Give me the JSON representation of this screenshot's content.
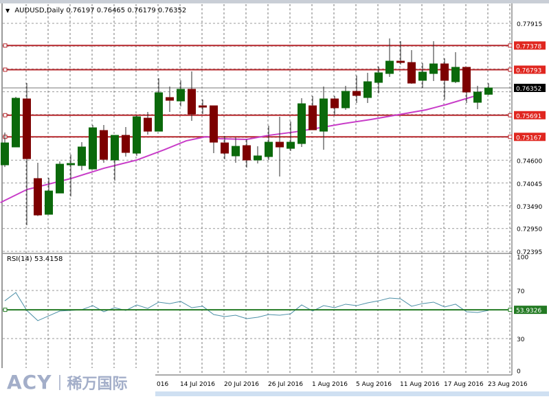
{
  "header": {
    "symbol": "AUDUSD,Daily",
    "open": "0.76197",
    "high": "0.76465",
    "low": "0.76179",
    "close": "0.76352"
  },
  "rsi_header": "RSI(14) 53.4158",
  "colors": {
    "bull": "#0b690b",
    "bear": "#7d0000",
    "level_line": "#b5262b",
    "level_label": "#e0261f",
    "ma": "#c83cc8",
    "rsi_line": "#4b8fa6",
    "rsi_level": "#237a23"
  },
  "chart_data": [
    {
      "type": "candlestick",
      "title": "AUDUSD,Daily",
      "ylim": [
        0.72395,
        0.77915
      ],
      "price_axis_labels": [
        "0.77915",
        "0.74600",
        "0.74045",
        "0.73490",
        "0.72950",
        "0.72395"
      ],
      "date_labels": [
        "016",
        "14 Jul 2016",
        "20 Jul 2016",
        "26 Jul 2016",
        "1 Aug 2016",
        "5 Aug 2016",
        "11 Aug 2016",
        "17 Aug 2016",
        "23 Aug 2016"
      ],
      "grid": true,
      "current_price": "0.76352",
      "horizontal_levels": [
        "0.77378",
        "0.76793",
        "0.75691",
        "0.75167"
      ],
      "ohlc": [
        [
          0.74489,
          0.75271,
          0.74439,
          0.75021
        ],
        [
          0.74922,
          0.76136,
          0.74922,
          0.76102
        ],
        [
          0.76086,
          0.76468,
          0.73026,
          0.74639
        ],
        [
          0.74157,
          0.74539,
          0.7325,
          0.73275
        ],
        [
          0.73292,
          0.74173,
          0.73292,
          0.73857
        ],
        [
          0.73807,
          0.74572,
          0.73807,
          0.74506
        ],
        [
          0.74523,
          0.74739,
          0.73724,
          0.74523
        ],
        [
          0.74473,
          0.75038,
          0.74356,
          0.74922
        ],
        [
          0.74389,
          0.75454,
          0.74389,
          0.75387
        ],
        [
          0.75321,
          0.75454,
          0.74539,
          0.74622
        ],
        [
          0.74606,
          0.75204,
          0.74107,
          0.75204
        ],
        [
          0.75204,
          0.75404,
          0.74689,
          0.74789
        ],
        [
          0.74772,
          0.75687,
          0.74706,
          0.75653
        ],
        [
          0.7562,
          0.7577,
          0.75221,
          0.75304
        ],
        [
          0.75304,
          0.76585,
          0.75304,
          0.76235
        ],
        [
          0.76119,
          0.76385,
          0.7577,
          0.76052
        ],
        [
          0.76036,
          0.76535,
          0.75903,
          0.76319
        ],
        [
          0.76319,
          0.76751,
          0.75554,
          0.7572
        ],
        [
          0.75919,
          0.76069,
          0.7572,
          0.75903
        ],
        [
          0.75919,
          0.75919,
          0.74772,
          0.75038
        ],
        [
          0.75021,
          0.75188,
          0.74622,
          0.74772
        ],
        [
          0.74706,
          0.75154,
          0.74539,
          0.74938
        ],
        [
          0.74955,
          0.75105,
          0.74423,
          0.74606
        ],
        [
          0.74606,
          0.74938,
          0.74523,
          0.74706
        ],
        [
          0.74689,
          0.75437,
          0.74606,
          0.75038
        ],
        [
          0.75038,
          0.75653,
          0.74207,
          0.74922
        ],
        [
          0.74888,
          0.75537,
          0.74822,
          0.75038
        ],
        [
          0.75005,
          0.76102,
          0.74922,
          0.75969
        ],
        [
          0.75919,
          0.76152,
          0.75337,
          0.75337
        ],
        [
          0.75304,
          0.76385,
          0.74855,
          0.76086
        ],
        [
          0.76086,
          0.76152,
          0.75687,
          0.7587
        ],
        [
          0.7587,
          0.76402,
          0.7582,
          0.76269
        ],
        [
          0.76269,
          0.76651,
          0.75986,
          0.76169
        ],
        [
          0.76119,
          0.76718,
          0.75986,
          0.76502
        ],
        [
          0.76485,
          0.76867,
          0.76219,
          0.76718
        ],
        [
          0.76701,
          0.77549,
          0.76618,
          0.77
        ],
        [
          0.77,
          0.77483,
          0.76917,
          0.76967
        ],
        [
          0.76967,
          0.77266,
          0.76452,
          0.76468
        ],
        [
          0.76535,
          0.7695,
          0.76352,
          0.76734
        ],
        [
          0.76701,
          0.77483,
          0.76518,
          0.76934
        ],
        [
          0.76934,
          0.77067,
          0.76069,
          0.76535
        ],
        [
          0.76502,
          0.77217,
          0.76468,
          0.76851
        ],
        [
          0.76851,
          0.76851,
          0.75986,
          0.76252
        ],
        [
          0.76003,
          0.76402,
          0.75836,
          0.76252
        ],
        [
          0.76197,
          0.76465,
          0.76179,
          0.76352
        ]
      ],
      "moving_average": [
        [
          -0.4,
          0.73575
        ],
        [
          2,
          0.73891
        ],
        [
          6,
          0.74157
        ],
        [
          9,
          0.74406
        ],
        [
          12,
          0.74606
        ],
        [
          14.5,
          0.74855
        ],
        [
          16.5,
          0.75071
        ],
        [
          18.3,
          0.75171
        ],
        [
          19.6,
          0.75121
        ],
        [
          22,
          0.75105
        ],
        [
          24,
          0.75204
        ],
        [
          26.4,
          0.75287
        ],
        [
          28.3,
          0.75371
        ],
        [
          30.8,
          0.75487
        ],
        [
          33.3,
          0.75587
        ],
        [
          35.8,
          0.75703
        ],
        [
          38.3,
          0.7582
        ],
        [
          40.2,
          0.75953
        ],
        [
          42.7,
          0.76152
        ],
        [
          43.3,
          0.76269
        ]
      ]
    },
    {
      "type": "line",
      "title": "RSI(14) 53.4158",
      "ylim": [
        0,
        100
      ],
      "axis_labels": [
        "100",
        "70",
        "30",
        "0"
      ],
      "level": "53.9326",
      "values": [
        61.4,
        68.3,
        53.4,
        44.9,
        48.9,
        52.9,
        53.4,
        54.0,
        57.4,
        52.3,
        55.7,
        53.4,
        58.0,
        55.1,
        60.3,
        59.1,
        60.9,
        55.7,
        56.9,
        50.0,
        48.3,
        49.4,
        46.6,
        47.7,
        50.0,
        49.4,
        50.6,
        58.0,
        52.9,
        57.4,
        55.7,
        58.6,
        57.4,
        59.7,
        61.4,
        63.7,
        63.1,
        56.9,
        59.1,
        60.3,
        56.3,
        58.6,
        52.3,
        51.7,
        53.42
      ]
    }
  ],
  "logo": {
    "brand": "ACY",
    "cn": "稀万国际"
  }
}
